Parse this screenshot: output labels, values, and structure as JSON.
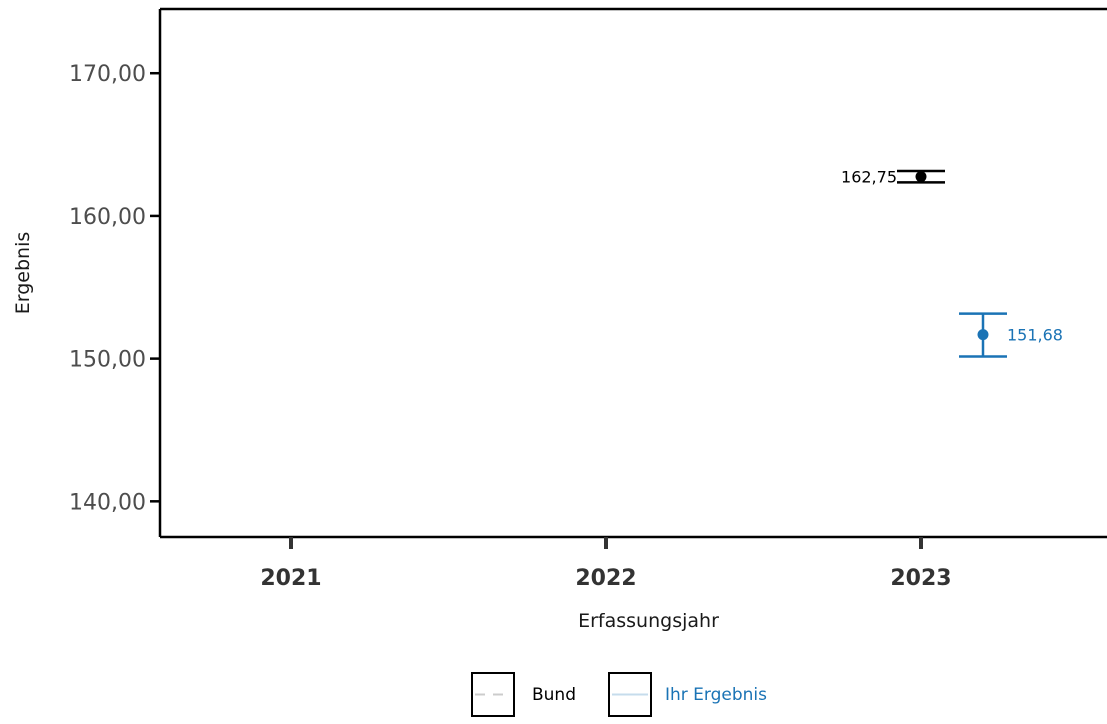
{
  "chart_data": {
    "type": "scatter",
    "title": "",
    "xlabel": "Erfassungsjahr",
    "ylabel": "Ergebnis",
    "categories": [
      "2021",
      "2022",
      "2023"
    ],
    "ylim": [
      137.5,
      174.5
    ],
    "y_ticks": [
      "140,00",
      "150,00",
      "160,00",
      "170,00"
    ],
    "y_tick_values": [
      140,
      150,
      160,
      170
    ],
    "grid": false,
    "legend_position": "bottom",
    "series": [
      {
        "name": "Bund",
        "color": "#000000",
        "legend_line_color": "#cccccc",
        "line_style": "dashed",
        "points": [
          {
            "x": "2023",
            "y": 162.75,
            "ci": [
              162.35,
              163.15
            ],
            "label": "162,75"
          }
        ]
      },
      {
        "name": "Ihr  Ergebnis",
        "color": "#1a73b5",
        "legend_line_color": "#c6dcec",
        "line_style": "solid",
        "points": [
          {
            "x": "2023",
            "y": 151.68,
            "ci": [
              150.15,
              153.15
            ],
            "label": "151,68"
          }
        ]
      }
    ]
  }
}
